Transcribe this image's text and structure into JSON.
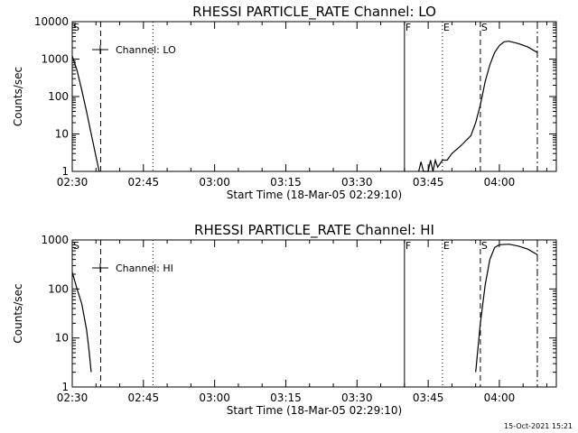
{
  "footer": {
    "timestamp": "15-Oct-2021 15:21"
  },
  "chart_data": [
    {
      "type": "line",
      "title": "RHESSI PARTICLE_RATE Channel: LO",
      "xlabel": "Start Time (18-Mar-05 02:29:10)",
      "ylabel": "Counts/sec",
      "y_scale": "log",
      "xlim": [
        "02:30",
        "04:12"
      ],
      "ylim": [
        1,
        10000
      ],
      "x_ticks": [
        "02:30",
        "02:45",
        "03:00",
        "03:15",
        "03:30",
        "03:45",
        "04:00"
      ],
      "y_ticks": [
        "1",
        "10",
        "100",
        "1000",
        "10000"
      ],
      "legend": {
        "position": "top-left",
        "label": "Channel: LO"
      },
      "markers": [
        {
          "label": "S",
          "time": "02:30",
          "style": "dash"
        },
        {
          "label": "",
          "time": "02:36",
          "style": "dash"
        },
        {
          "label": "",
          "time": "02:47",
          "style": "dot"
        },
        {
          "label": "F",
          "time": "03:40",
          "style": "solid"
        },
        {
          "label": "E",
          "time": "03:48",
          "style": "dot"
        },
        {
          "label": "S",
          "time": "03:56",
          "style": "dash"
        },
        {
          "label": "",
          "time": "04:08",
          "style": "dashdot"
        }
      ],
      "segments": [
        {
          "points": [
            [
              "02:30",
              1200
            ],
            [
              "02:31",
              500
            ],
            [
              "02:32",
              150
            ],
            [
              "02:33",
              40
            ],
            [
              "02:34",
              10
            ],
            [
              "02:35",
              2.5
            ],
            [
              "02:35:40",
              1
            ]
          ]
        },
        {
          "points": [
            [
              "03:43",
              1
            ],
            [
              "03:43:30",
              1.8
            ],
            [
              "03:44",
              1
            ],
            [
              "03:45",
              1
            ],
            [
              "03:45:30",
              2
            ],
            [
              "03:46",
              1
            ],
            [
              "03:46:30",
              2
            ],
            [
              "03:47",
              1.3
            ],
            [
              "03:48",
              2
            ],
            [
              "03:49",
              2
            ],
            [
              "03:50",
              3
            ],
            [
              "03:52",
              5
            ],
            [
              "03:54",
              9
            ],
            [
              "03:55",
              20
            ],
            [
              "03:56",
              60
            ],
            [
              "03:57",
              250
            ],
            [
              "03:58",
              700
            ],
            [
              "03:59",
              1500
            ],
            [
              "04:00",
              2300
            ],
            [
              "04:01",
              2900
            ],
            [
              "04:02",
              3000
            ],
            [
              "04:04",
              2600
            ],
            [
              "04:06",
              2100
            ],
            [
              "04:08",
              1500
            ]
          ]
        }
      ]
    },
    {
      "type": "line",
      "title": "RHESSI PARTICLE_RATE Channel: HI",
      "xlabel": "Start Time (18-Mar-05 02:29:10)",
      "ylabel": "Counts/sec",
      "y_scale": "log",
      "xlim": [
        "02:30",
        "04:12"
      ],
      "ylim": [
        1,
        1000
      ],
      "x_ticks": [
        "02:30",
        "02:45",
        "03:00",
        "03:15",
        "03:30",
        "03:45",
        "04:00"
      ],
      "y_ticks": [
        "1",
        "10",
        "100",
        "1000"
      ],
      "legend": {
        "position": "top-left",
        "label": "Channel: HI"
      },
      "markers": [
        {
          "label": "S",
          "time": "02:30",
          "style": "dash"
        },
        {
          "label": "",
          "time": "02:36",
          "style": "dash"
        },
        {
          "label": "",
          "time": "02:47",
          "style": "dot"
        },
        {
          "label": "F",
          "time": "03:40",
          "style": "solid"
        },
        {
          "label": "E",
          "time": "03:48",
          "style": "dot"
        },
        {
          "label": "S",
          "time": "03:56",
          "style": "dash"
        },
        {
          "label": "",
          "time": "04:08",
          "style": "dashdot"
        }
      ],
      "segments": [
        {
          "points": [
            [
              "02:30",
              220
            ],
            [
              "02:31",
              100
            ],
            [
              "02:32",
              50
            ],
            [
              "02:33",
              15
            ],
            [
              "02:33:30",
              6
            ],
            [
              "02:34",
              2
            ]
          ]
        },
        {
          "points": [
            [
              "03:55",
              2
            ],
            [
              "03:56",
              20
            ],
            [
              "03:57",
              120
            ],
            [
              "03:58",
              400
            ],
            [
              "03:59",
              700
            ],
            [
              "04:00",
              800
            ],
            [
              "04:02",
              820
            ],
            [
              "04:04",
              750
            ],
            [
              "04:06",
              650
            ],
            [
              "04:08",
              500
            ]
          ]
        }
      ]
    }
  ]
}
